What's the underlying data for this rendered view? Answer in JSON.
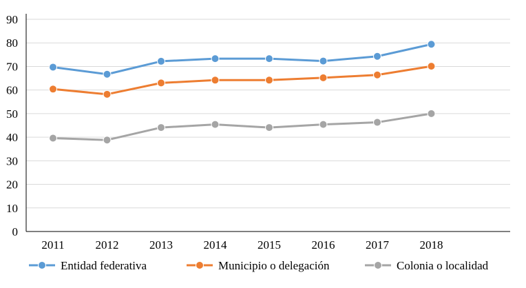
{
  "chart_data": {
    "type": "line",
    "categories": [
      "2011",
      "2012",
      "2013",
      "2014",
      "2015",
      "2016",
      "2017",
      "2018"
    ],
    "ylim": [
      0,
      90
    ],
    "yticks": [
      0,
      10,
      20,
      30,
      40,
      50,
      60,
      70,
      80,
      90
    ],
    "grid": "horizontal",
    "legend_position": "bottom",
    "series": [
      {
        "name": "Entidad federativa",
        "color": "#5B9BD5",
        "values": [
          69.7,
          66.7,
          72.2,
          73.3,
          73.3,
          72.3,
          74.3,
          79.4
        ]
      },
      {
        "name": "Municipio o delegación",
        "color": "#ED7D31",
        "values": [
          60.4,
          58.2,
          63.0,
          64.2,
          64.2,
          65.2,
          66.4,
          70.1
        ]
      },
      {
        "name": "Colonia o localidad",
        "color": "#A5A5A5",
        "values": [
          39.6,
          38.8,
          44.1,
          45.4,
          44.1,
          45.4,
          46.3,
          50.0
        ]
      }
    ]
  }
}
